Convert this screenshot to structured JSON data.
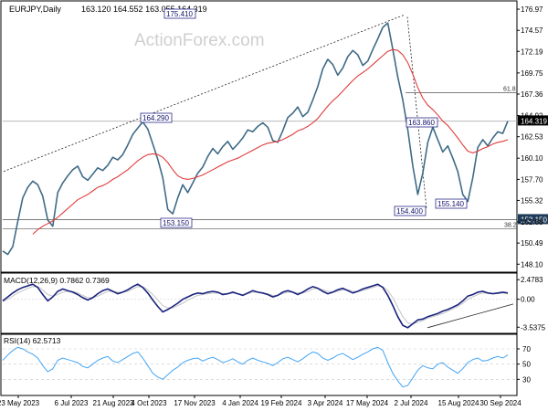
{
  "header": {
    "symbol_label": "EURJPY,Daily",
    "ohlc": "163.120 164.552 163.055 164.319"
  },
  "watermark": "ActionForex.com",
  "colors": {
    "price": "#3f6b87",
    "ma": "#e03b3b",
    "macd_line": "#1a237e",
    "macd_signal": "#c8c8c8",
    "rsi": "#42a5f5",
    "level_box_border": "#2a2a8a",
    "current_price_bg": "#000000",
    "support_bg": "#1f3b5a"
  },
  "chart_data": [
    {
      "type": "line",
      "panel": "price",
      "x_ticks": [
        "23 May 2023",
        "6 Jul 2023",
        "21 Aug 2023",
        "4 Oct 2023",
        "17 Nov 2023",
        "4 Jan 2024",
        "19 Feb 2024",
        "3 Apr 2024",
        "17 May 2024",
        "2 Jul 2024",
        "15 Aug 2024",
        "30 Sep 2024"
      ],
      "y_ticks": [
        148.1,
        150.49,
        152.88,
        155.32,
        157.7,
        160.1,
        162.53,
        164.92,
        167.36,
        169.75,
        172.19,
        174.57,
        176.97
      ],
      "ylim": [
        147.3,
        177.8
      ],
      "series": [
        {
          "values": [
            149.6,
            149.2,
            150.1,
            152.9,
            155.6,
            156.8,
            157.5,
            157.1,
            155.8,
            153.1,
            152.4,
            156.2,
            157.3,
            158.1,
            158.8,
            159.2,
            158.0,
            157.6,
            158.3,
            159.0,
            158.7,
            159.3,
            160.2,
            159.9,
            160.5,
            161.6,
            162.8,
            163.5,
            164.2,
            163.4,
            161.7,
            160.0,
            157.9,
            154.3,
            153.8,
            155.6,
            157.1,
            156.2,
            157.3,
            158.4,
            159.1,
            160.3,
            161.2,
            160.6,
            161.4,
            162.0,
            161.1,
            161.7,
            162.4,
            163.3,
            163.1,
            163.7,
            164.1,
            163.6,
            162.1,
            161.9,
            163.2,
            164.7,
            165.2,
            165.9,
            164.8,
            165.3,
            166.7,
            168.2,
            170.2,
            171.3,
            170.7,
            169.5,
            170.3,
            171.6,
            172.3,
            171.8,
            170.6,
            171.1,
            172.4,
            173.6,
            174.9,
            175.4,
            172.4,
            169.3,
            166.7,
            163.3,
            159.2,
            156.0,
            158.4,
            161.9,
            163.6,
            162.2,
            160.8,
            161.5,
            160.1,
            158.6,
            156.0,
            155.2,
            157.9,
            161.3,
            162.2,
            161.5,
            162.4,
            163.1,
            162.9,
            164.3
          ]
        },
        {
          "values": [
            null,
            null,
            null,
            null,
            null,
            null,
            151.5,
            152.0,
            152.4,
            152.7,
            153.0,
            153.4,
            153.9,
            154.4,
            154.9,
            155.4,
            155.7,
            156.0,
            156.4,
            156.8,
            157.0,
            157.3,
            157.7,
            158.0,
            158.4,
            158.8,
            159.3,
            159.8,
            160.2,
            160.5,
            160.6,
            160.5,
            160.2,
            159.6,
            158.8,
            158.1,
            157.8,
            157.7,
            157.8,
            158.0,
            158.2,
            158.5,
            158.8,
            159.1,
            159.4,
            159.7,
            159.9,
            160.1,
            160.4,
            160.7,
            161.0,
            161.3,
            161.6,
            161.8,
            161.9,
            162.0,
            162.2,
            162.5,
            162.8,
            163.2,
            163.4,
            163.7,
            164.1,
            164.6,
            165.3,
            166.0,
            166.6,
            167.1,
            167.7,
            168.3,
            168.9,
            169.4,
            169.8,
            170.2,
            170.7,
            171.2,
            171.7,
            172.2,
            172.4,
            172.3,
            171.8,
            170.9,
            169.6,
            168.1,
            166.9,
            166.1,
            165.6,
            165.0,
            164.3,
            163.8,
            163.1,
            162.4,
            161.6,
            160.9,
            160.7,
            160.9,
            161.2,
            161.4,
            161.7,
            161.9,
            162.0,
            162.2
          ]
        }
      ],
      "annotations": [
        {
          "label": "175.410",
          "price": 175.41
        },
        {
          "label": "164.290",
          "price": 164.29
        },
        {
          "label": "163.860",
          "price": 163.86
        },
        {
          "label": "155.140",
          "price": 155.14
        },
        {
          "label": "154.400",
          "price": 154.4
        },
        {
          "label": "153.150",
          "price": 153.15
        },
        {
          "label": "61.8",
          "price": 167.5
        },
        {
          "label": "38.2",
          "price": 152.1
        }
      ],
      "current_price_label": "164.319",
      "support_label": "153.150"
    },
    {
      "type": "line",
      "panel": "macd",
      "title": "MACD(12,26,9) 0.7862 0.7369",
      "y_ticks_labels": [
        "2.4783",
        "0.00",
        "-3.5375"
      ],
      "ylim": [
        -4.2,
        3.2
      ],
      "series": [
        {
          "values": [
            -0.2,
            0.3,
            0.8,
            1.2,
            1.5,
            1.7,
            1.9,
            1.5,
            0.6,
            -0.2,
            0.3,
            1.0,
            1.3,
            1.1,
            0.9,
            0.6,
            0.2,
            -0.1,
            0.2,
            0.7,
            1.1,
            1.3,
            1.0,
            0.7,
            0.9,
            1.2,
            1.6,
            1.9,
            1.5,
            0.8,
            -0.1,
            -0.9,
            -1.6,
            -1.3,
            -0.9,
            -0.5,
            0.0,
            0.3,
            0.6,
            0.8,
            0.7,
            0.9,
            1.0,
            0.9,
            0.6,
            0.7,
            0.9,
            0.7,
            0.5,
            0.8,
            1.1,
            0.9,
            0.8,
            0.6,
            0.3,
            0.5,
            0.9,
            1.1,
            0.9,
            0.6,
            0.9,
            1.3,
            1.6,
            1.4,
            1.0,
            0.7,
            0.9,
            1.2,
            1.4,
            1.1,
            0.8,
            1.0,
            1.3,
            1.5,
            1.7,
            1.9,
            1.5,
            0.5,
            -0.8,
            -2.2,
            -3.3,
            -3.6,
            -3.1,
            -2.6,
            -2.5,
            -2.2,
            -2.0,
            -1.8,
            -1.5,
            -1.3,
            -1.0,
            -0.7,
            -0.2,
            0.4,
            0.6,
            0.9,
            1.0,
            0.8,
            0.7,
            0.8,
            0.9,
            0.8
          ]
        },
        {
          "values": [
            -0.3,
            0.0,
            0.4,
            0.8,
            1.1,
            1.4,
            1.6,
            1.6,
            1.2,
            0.6,
            0.4,
            0.6,
            0.9,
            1.0,
            1.0,
            0.8,
            0.5,
            0.2,
            0.2,
            0.4,
            0.7,
            1.0,
            1.0,
            0.9,
            0.9,
            1.0,
            1.3,
            1.6,
            1.6,
            1.2,
            0.6,
            -0.1,
            -0.8,
            -1.1,
            -1.1,
            -0.8,
            -0.5,
            -0.1,
            0.2,
            0.5,
            0.6,
            0.7,
            0.8,
            0.8,
            0.7,
            0.7,
            0.8,
            0.7,
            0.6,
            0.7,
            0.9,
            0.9,
            0.8,
            0.7,
            0.5,
            0.5,
            0.7,
            0.9,
            0.9,
            0.8,
            0.8,
            1.0,
            1.3,
            1.4,
            1.2,
            1.0,
            0.9,
            1.0,
            1.2,
            1.2,
            1.0,
            1.0,
            1.1,
            1.3,
            1.5,
            1.7,
            1.6,
            1.1,
            0.2,
            -1.0,
            -2.2,
            -3.0,
            -3.1,
            -2.9,
            -2.7,
            -2.4,
            -2.2,
            -2.0,
            -1.8,
            -1.5,
            -1.2,
            -0.9,
            -0.5,
            0.0,
            0.3,
            0.6,
            0.8,
            0.8,
            0.7,
            0.7,
            0.8,
            0.7
          ]
        }
      ]
    },
    {
      "type": "line",
      "panel": "rsi",
      "title": "RSI(14) 62.5713",
      "y_ticks_labels": [
        "70",
        "50",
        "30"
      ],
      "ylim": [
        10,
        88
      ],
      "series": [
        {
          "values": [
            55,
            62,
            68,
            72,
            70,
            66,
            63,
            58,
            48,
            40,
            44,
            55,
            58,
            56,
            54,
            52,
            47,
            45,
            50,
            55,
            58,
            60,
            54,
            52,
            56,
            60,
            64,
            66,
            58,
            48,
            38,
            33,
            30,
            36,
            42,
            46,
            52,
            55,
            57,
            58,
            54,
            57,
            59,
            56,
            52,
            54,
            57,
            53,
            50,
            55,
            58,
            55,
            53,
            51,
            48,
            52,
            57,
            59,
            56,
            53,
            57,
            62,
            66,
            64,
            58,
            55,
            58,
            62,
            64,
            60,
            56,
            59,
            63,
            66,
            70,
            72,
            68,
            52,
            38,
            28,
            20,
            22,
            32,
            42,
            48,
            45,
            44,
            50,
            52,
            46,
            42,
            38,
            44,
            52,
            56,
            58,
            54,
            55,
            58,
            60,
            58,
            62
          ]
        }
      ]
    }
  ]
}
